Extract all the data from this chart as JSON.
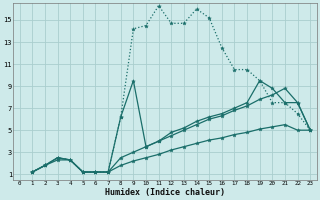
{
  "xlabel": "Humidex (Indice chaleur)",
  "bg_color": "#ceeaea",
  "grid_color": "#aacece",
  "line_color": "#1a6e6a",
  "xlim": [
    -0.5,
    23.5
  ],
  "ylim": [
    0.5,
    16.5
  ],
  "xticks": [
    0,
    1,
    2,
    3,
    4,
    5,
    6,
    7,
    8,
    9,
    10,
    11,
    12,
    13,
    14,
    15,
    16,
    17,
    18,
    19,
    20,
    21,
    22,
    23
  ],
  "yticks": [
    1,
    3,
    5,
    7,
    9,
    11,
    13,
    15
  ],
  "series": [
    {
      "x": [
        1,
        2,
        3,
        4,
        5,
        6,
        7,
        8,
        9,
        10,
        11,
        12,
        13,
        14,
        15,
        16,
        17,
        18,
        19,
        20,
        21,
        22,
        23
      ],
      "y": [
        1.2,
        1.8,
        2.5,
        2.3,
        1.2,
        1.2,
        1.2,
        6.2,
        14.2,
        14.5,
        16.3,
        14.7,
        14.7,
        16.0,
        15.2,
        12.5,
        10.5,
        10.5,
        9.5,
        7.5,
        7.5,
        6.5,
        5.0
      ],
      "dotted": true,
      "lw": 0.9
    },
    {
      "x": [
        1,
        2,
        3,
        4,
        5,
        6,
        7,
        8,
        9,
        10,
        11,
        12,
        13,
        14,
        15,
        16,
        17,
        18,
        19,
        20,
        21,
        22,
        23
      ],
      "y": [
        1.2,
        1.8,
        2.5,
        2.3,
        1.2,
        1.2,
        1.2,
        6.2,
        9.5,
        3.5,
        4.0,
        4.8,
        5.2,
        5.8,
        6.2,
        6.5,
        7.0,
        7.5,
        9.5,
        8.8,
        7.5,
        7.5,
        5.0
      ],
      "dotted": false,
      "lw": 0.9
    },
    {
      "x": [
        1,
        2,
        3,
        4,
        5,
        6,
        7,
        8,
        9,
        10,
        11,
        12,
        13,
        14,
        15,
        16,
        17,
        18,
        19,
        20,
        21,
        22,
        23
      ],
      "y": [
        1.2,
        1.8,
        2.5,
        2.3,
        1.2,
        1.2,
        1.2,
        2.5,
        3.0,
        3.5,
        4.0,
        4.5,
        5.0,
        5.5,
        6.0,
        6.3,
        6.8,
        7.2,
        7.8,
        8.2,
        8.8,
        7.5,
        5.0
      ],
      "dotted": false,
      "lw": 0.9
    },
    {
      "x": [
        1,
        2,
        3,
        4,
        5,
        6,
        7,
        8,
        9,
        10,
        11,
        12,
        13,
        14,
        15,
        16,
        17,
        18,
        19,
        20,
        21,
        22,
        23
      ],
      "y": [
        1.2,
        1.8,
        2.3,
        2.3,
        1.2,
        1.2,
        1.2,
        1.8,
        2.2,
        2.5,
        2.8,
        3.2,
        3.5,
        3.8,
        4.1,
        4.3,
        4.6,
        4.8,
        5.1,
        5.3,
        5.5,
        5.0,
        5.0
      ],
      "dotted": false,
      "lw": 0.9
    }
  ]
}
